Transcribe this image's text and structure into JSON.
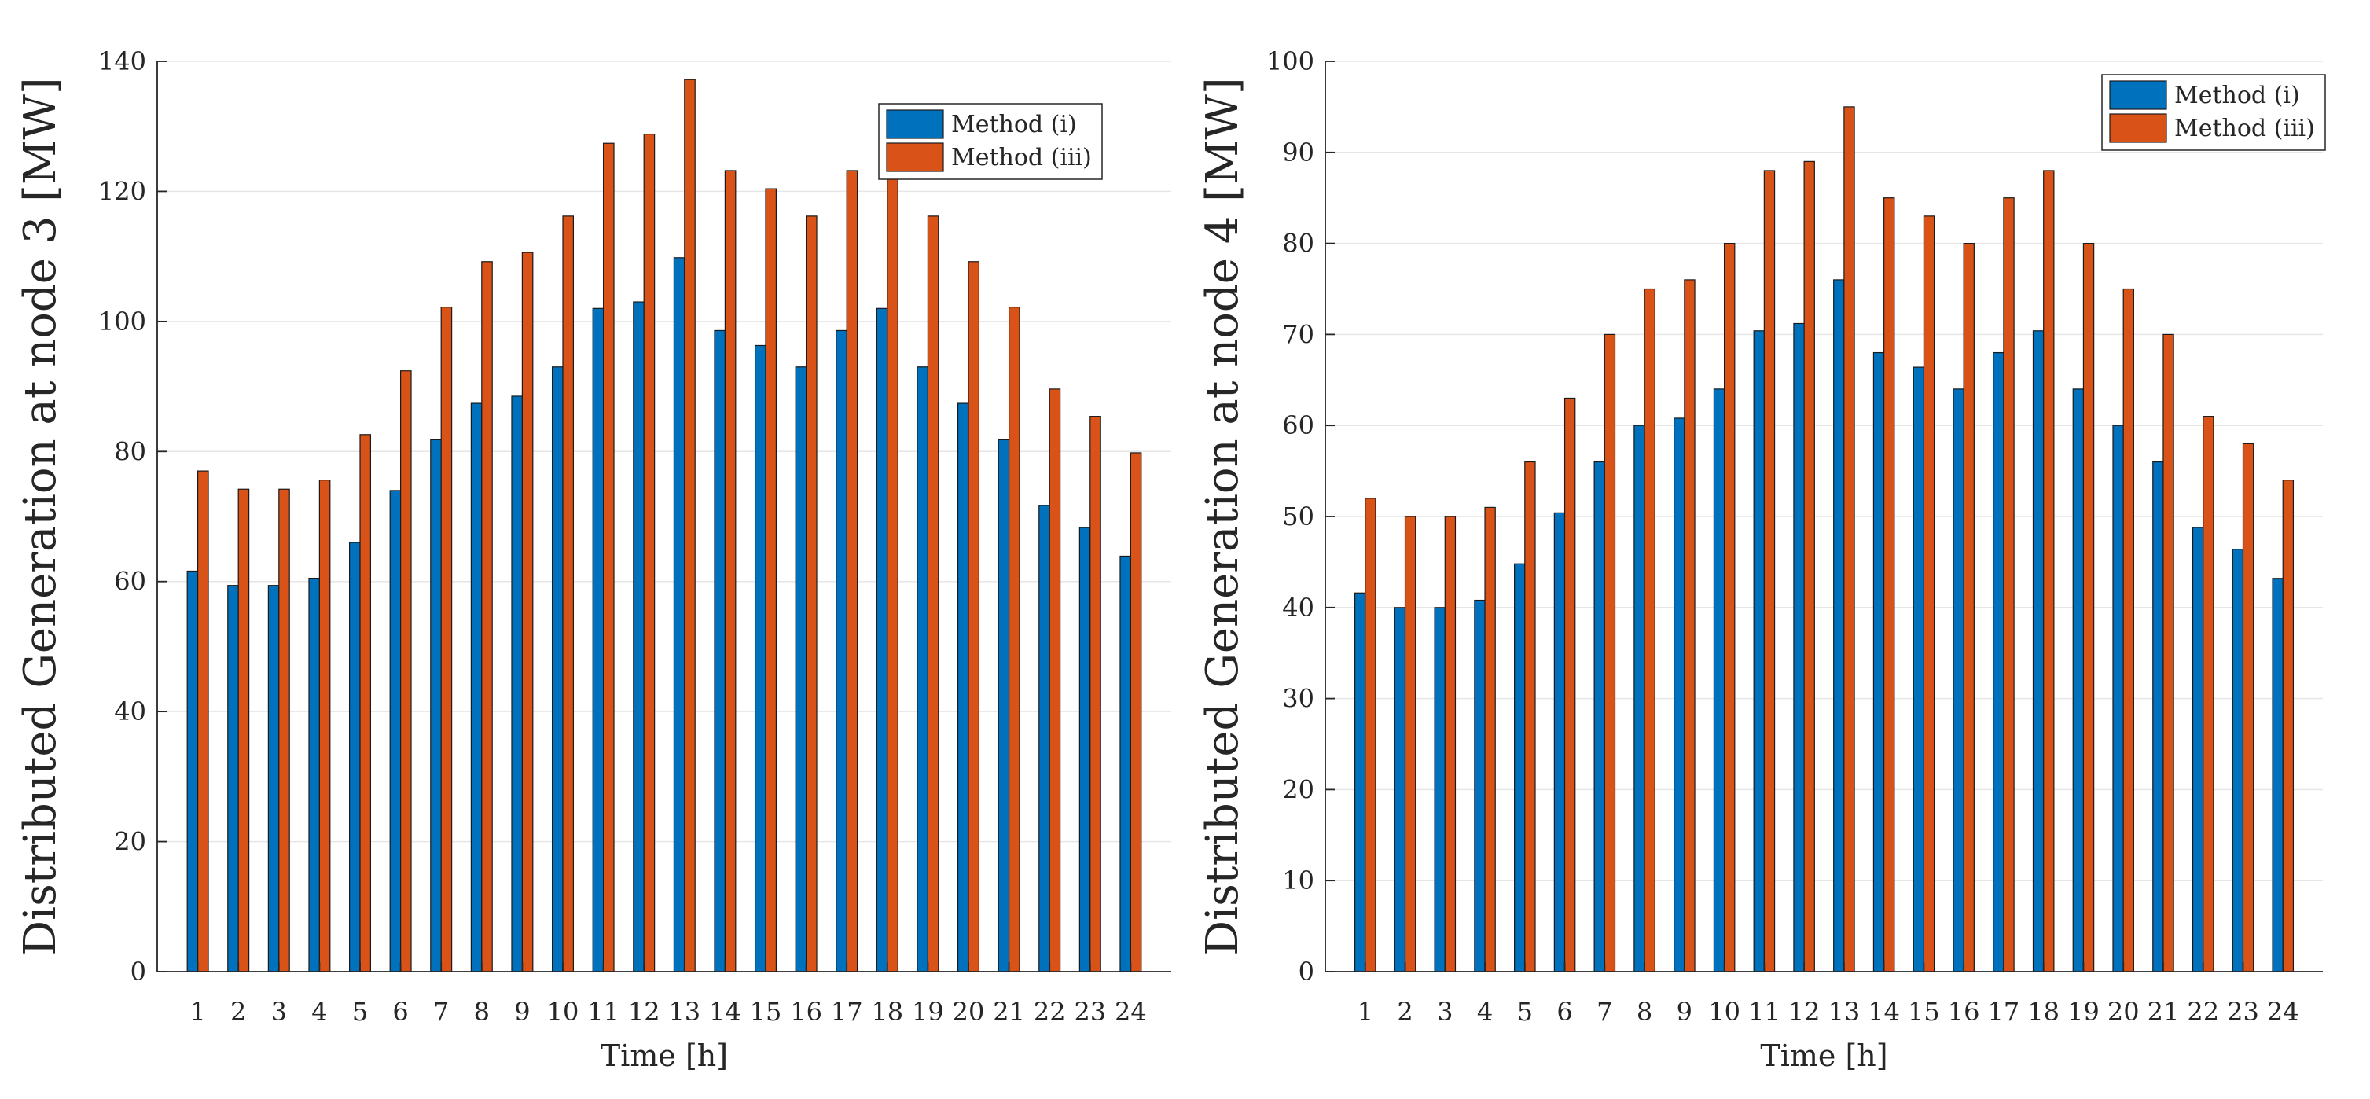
{
  "chart_data": [
    {
      "type": "bar",
      "title": "",
      "xlabel": "Time [h]",
      "ylabel": "Distributed Generation at node 3 [MW]",
      "ylim": [
        0,
        140
      ],
      "yticks": [
        0,
        20,
        40,
        60,
        80,
        100,
        120,
        140
      ],
      "grid": true,
      "legend": "top-right",
      "categories": [
        "1",
        "2",
        "3",
        "4",
        "5",
        "6",
        "7",
        "8",
        "9",
        "10",
        "11",
        "12",
        "13",
        "14",
        "15",
        "16",
        "17",
        "18",
        "19",
        "20",
        "21",
        "22",
        "23",
        "24"
      ],
      "series": [
        {
          "name": "Method (i)",
          "color": "#0072BD",
          "values": [
            61.6,
            59.4,
            59.4,
            60.5,
            66.0,
            74.0,
            81.8,
            87.4,
            88.5,
            93.0,
            102.0,
            103.0,
            109.8,
            98.6,
            96.3,
            93.0,
            98.6,
            102.0,
            93.0,
            87.4,
            81.8,
            71.7,
            68.3,
            63.9
          ]
        },
        {
          "name": "Method (iii)",
          "color": "#D95319",
          "values": [
            77.0,
            74.2,
            74.2,
            75.6,
            82.6,
            92.4,
            102.2,
            109.2,
            110.6,
            116.2,
            127.4,
            128.8,
            137.2,
            123.2,
            120.4,
            116.2,
            123.2,
            127.4,
            116.2,
            109.2,
            102.2,
            89.6,
            85.4,
            79.8
          ]
        }
      ]
    },
    {
      "type": "bar",
      "title": "",
      "xlabel": "Time [h]",
      "ylabel": "Distributed Generation at node 4 [MW]",
      "ylim": [
        0,
        100
      ],
      "yticks": [
        0,
        10,
        20,
        30,
        40,
        50,
        60,
        70,
        80,
        90,
        100
      ],
      "grid": true,
      "legend": "top-right",
      "categories": [
        "1",
        "2",
        "3",
        "4",
        "5",
        "6",
        "7",
        "8",
        "9",
        "10",
        "11",
        "12",
        "13",
        "14",
        "15",
        "16",
        "17",
        "18",
        "19",
        "20",
        "21",
        "22",
        "23",
        "24"
      ],
      "series": [
        {
          "name": "Method (i)",
          "color": "#0072BD",
          "values": [
            41.6,
            40.0,
            40.0,
            40.8,
            44.8,
            50.4,
            56.0,
            60.0,
            60.8,
            64.0,
            70.4,
            71.2,
            76.0,
            68.0,
            66.4,
            64.0,
            68.0,
            70.4,
            64.0,
            60.0,
            56.0,
            48.8,
            46.4,
            43.2
          ]
        },
        {
          "name": "Method (iii)",
          "color": "#D95319",
          "values": [
            52.0,
            50.0,
            50.0,
            51.0,
            56.0,
            63.0,
            70.0,
            75.0,
            76.0,
            80.0,
            88.0,
            89.0,
            95.0,
            85.0,
            83.0,
            80.0,
            85.0,
            88.0,
            80.0,
            75.0,
            70.0,
            61.0,
            58.0,
            54.0
          ]
        }
      ]
    }
  ]
}
